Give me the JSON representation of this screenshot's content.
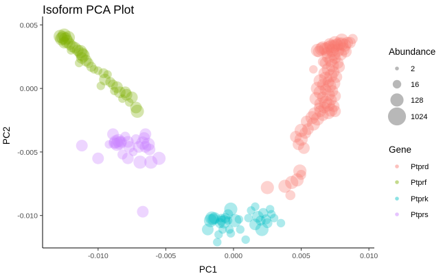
{
  "chart_data": {
    "type": "scatter",
    "title": "Isoform PCA Plot",
    "xlabel": "PC1",
    "ylabel": "PC2",
    "xlim": [
      -0.0141,
      0.0104
    ],
    "ylim": [
      -0.01255,
      0.00545
    ],
    "x_ticks": [
      -0.01,
      -0.005,
      0.0,
      0.005,
      0.01
    ],
    "x_tick_labels": [
      "-0.010",
      "-0.005",
      "0.000",
      "0.005",
      "0.010"
    ],
    "y_ticks": [
      -0.01,
      -0.005,
      0.0,
      0.005
    ],
    "y_tick_labels": [
      "-0.010",
      "-0.005",
      "0.000",
      "0.005"
    ],
    "grid": false,
    "legend_position": "right",
    "size_legend": {
      "title": "Abundance",
      "entries": [
        {
          "label": "2",
          "value": 2
        },
        {
          "label": "16",
          "value": 16
        },
        {
          "label": "128",
          "value": 128
        },
        {
          "label": "1024",
          "value": 1024
        }
      ]
    },
    "color_legend": {
      "title": "Gene",
      "entries": [
        {
          "label": "Ptprd",
          "color": "#F8766D"
        },
        {
          "label": "Ptprf",
          "color": "#7CAE00"
        },
        {
          "label": "Ptprk",
          "color": "#00BFC4"
        },
        {
          "label": "Ptprs",
          "color": "#C77CFF"
        }
      ]
    },
    "series": [
      {
        "name": "Ptprd",
        "color": "#F8766D",
        "points": [
          [
            0.0062,
            0.003,
            128
          ],
          [
            0.0065,
            0.0031,
            128
          ],
          [
            0.0068,
            0.0031,
            128
          ],
          [
            0.007,
            0.0032,
            128
          ],
          [
            0.0072,
            0.0033,
            128
          ],
          [
            0.0074,
            0.0033,
            128
          ],
          [
            0.0076,
            0.0034,
            128
          ],
          [
            0.0078,
            0.0035,
            128
          ],
          [
            0.008,
            0.0035,
            128
          ],
          [
            0.0082,
            0.0034,
            128
          ],
          [
            0.0084,
            0.0036,
            64
          ],
          [
            0.0086,
            0.0036,
            64
          ],
          [
            0.0088,
            0.0039,
            32
          ],
          [
            0.008,
            0.0038,
            128
          ],
          [
            0.0075,
            0.0036,
            128
          ],
          [
            0.0071,
            0.0035,
            64
          ],
          [
            0.0066,
            0.0032,
            128
          ],
          [
            0.0063,
            0.0029,
            64
          ],
          [
            0.0073,
            0.003,
            128
          ],
          [
            0.0077,
            0.003,
            128
          ],
          [
            0.0081,
            0.0031,
            128
          ],
          [
            0.0069,
            0.0028,
            64
          ],
          [
            0.0074,
            0.0027,
            128
          ],
          [
            0.0079,
            0.0027,
            128
          ],
          [
            0.0083,
            0.0029,
            64
          ],
          [
            0.007,
            0.0025,
            128
          ],
          [
            0.0075,
            0.0024,
            64
          ],
          [
            0.0072,
            0.0022,
            128
          ],
          [
            0.0077,
            0.002,
            64
          ],
          [
            0.0068,
            0.002,
            64
          ],
          [
            0.0073,
            0.0018,
            128
          ],
          [
            0.0078,
            0.0017,
            64
          ],
          [
            0.007,
            0.0015,
            128
          ],
          [
            0.0074,
            0.0013,
            64
          ],
          [
            0.0067,
            0.0012,
            64
          ],
          [
            0.0072,
            0.001,
            128
          ],
          [
            0.0076,
            0.0009,
            64
          ],
          [
            0.0068,
            0.0008,
            128
          ],
          [
            0.0064,
            0.0006,
            128
          ],
          [
            0.007,
            0.0005,
            64
          ],
          [
            0.0074,
            0.0004,
            128
          ],
          [
            0.0066,
            0.0003,
            64
          ],
          [
            0.0071,
            0.0002,
            128
          ],
          [
            0.0062,
            0.0,
            128
          ],
          [
            0.0068,
            -0.0001,
            64
          ],
          [
            0.0073,
            -0.0002,
            64
          ],
          [
            0.0064,
            -0.0003,
            128
          ],
          [
            0.007,
            -0.0005,
            128
          ],
          [
            0.0075,
            -0.0006,
            64
          ],
          [
            0.0066,
            -0.0007,
            64
          ],
          [
            0.0061,
            -0.0008,
            128
          ],
          [
            0.0072,
            -0.0009,
            64
          ],
          [
            0.0068,
            -0.0011,
            128
          ],
          [
            0.0064,
            -0.0012,
            64
          ],
          [
            0.007,
            -0.0013,
            128
          ],
          [
            0.0074,
            -0.0014,
            64
          ],
          [
            0.0067,
            -0.0015,
            64
          ],
          [
            0.0072,
            -0.0017,
            128
          ],
          [
            0.0064,
            -0.0018,
            64
          ],
          [
            0.007,
            -0.0019,
            128
          ],
          [
            0.0075,
            -0.0018,
            64
          ],
          [
            0.006,
            -0.002,
            128
          ],
          [
            0.0066,
            -0.0021,
            64
          ],
          [
            0.0058,
            -0.0023,
            128
          ],
          [
            0.0062,
            -0.0024,
            128
          ],
          [
            0.0054,
            -0.0026,
            64
          ],
          [
            0.0059,
            -0.0028,
            128
          ],
          [
            0.0055,
            -0.0032,
            64
          ],
          [
            0.005,
            -0.0033,
            128
          ],
          [
            0.0053,
            -0.0035,
            64
          ],
          [
            0.0046,
            -0.0038,
            64
          ],
          [
            0.005,
            -0.004,
            128
          ],
          [
            0.0048,
            -0.0044,
            64
          ],
          [
            0.0052,
            -0.0047,
            64
          ],
          [
            0.0049,
            -0.0065,
            128
          ],
          [
            0.005,
            -0.0068,
            32
          ],
          [
            0.0047,
            -0.0072,
            128
          ],
          [
            0.0043,
            -0.0074,
            128
          ],
          [
            0.0038,
            -0.0077,
            128
          ],
          [
            0.0025,
            -0.0078,
            128
          ],
          [
            0.0042,
            -0.0084,
            32
          ],
          [
            0.0066,
            0.0021,
            32
          ],
          [
            0.0059,
            0.0015,
            16
          ],
          [
            0.0063,
            -0.0015,
            32
          ]
        ]
      },
      {
        "name": "Ptprf",
        "color": "#7CAE00",
        "points": [
          [
            -0.0128,
            0.0041,
            128
          ],
          [
            -0.0126,
            0.004,
            128
          ],
          [
            -0.0124,
            0.0039,
            128
          ],
          [
            -0.0125,
            0.0042,
            128
          ],
          [
            -0.0127,
            0.0039,
            128
          ],
          [
            -0.0122,
            0.004,
            128
          ],
          [
            -0.0123,
            0.0037,
            128
          ],
          [
            -0.0125,
            0.0036,
            64
          ],
          [
            -0.0121,
            0.0035,
            64
          ],
          [
            -0.0119,
            0.0033,
            64
          ],
          [
            -0.0117,
            0.0032,
            64
          ],
          [
            -0.0115,
            0.003,
            64
          ],
          [
            -0.0113,
            0.0029,
            128
          ],
          [
            -0.0112,
            0.0027,
            128
          ],
          [
            -0.0111,
            0.0026,
            128
          ],
          [
            -0.0112,
            0.0024,
            64
          ],
          [
            -0.0109,
            0.0022,
            64
          ],
          [
            -0.0107,
            0.002,
            32
          ],
          [
            -0.0105,
            0.0017,
            32
          ],
          [
            -0.0103,
            0.0015,
            16
          ],
          [
            -0.01,
            0.0014,
            16
          ],
          [
            -0.0096,
            0.0012,
            32
          ],
          [
            -0.0095,
            0.0007,
            64
          ],
          [
            -0.0091,
            0.0005,
            32
          ],
          [
            -0.0089,
            0.0003,
            32
          ],
          [
            -0.0086,
            0.0001,
            64
          ],
          [
            -0.0084,
            -0.0003,
            64
          ],
          [
            -0.008,
            -0.0003,
            64
          ],
          [
            -0.0079,
            -0.0005,
            64
          ],
          [
            -0.0075,
            -0.0007,
            64
          ],
          [
            -0.0072,
            -0.0015,
            64
          ],
          [
            -0.0071,
            -0.0018,
            128
          ],
          [
            -0.0093,
            0.0011,
            16
          ],
          [
            -0.0088,
            -0.0002,
            16
          ],
          [
            -0.0082,
            -0.0008,
            16
          ],
          [
            -0.0077,
            -0.0011,
            16
          ],
          [
            -0.012,
            0.003,
            16
          ],
          [
            -0.0114,
            0.002,
            16
          ],
          [
            -0.0098,
            0.0002,
            16
          ]
        ]
      },
      {
        "name": "Ptprk",
        "color": "#00BFC4",
        "points": [
          [
            -0.0017,
            -0.0104,
            128
          ],
          [
            -0.0016,
            -0.0102,
            128
          ],
          [
            -0.0015,
            -0.0103,
            64
          ],
          [
            -0.0014,
            -0.0102,
            64
          ],
          [
            -0.001,
            -0.0106,
            32
          ],
          [
            -0.0009,
            -0.0104,
            32
          ],
          [
            -0.0007,
            -0.0105,
            128
          ],
          [
            -0.0006,
            -0.0102,
            32
          ],
          [
            -0.0004,
            -0.0104,
            16
          ],
          [
            -0.0003,
            -0.0111,
            16
          ],
          [
            -0.0004,
            -0.0099,
            32
          ],
          [
            -0.0009,
            -0.0102,
            16
          ],
          [
            0.0001,
            -0.0104,
            128
          ],
          [
            -0.0002,
            -0.0095,
            128
          ],
          [
            -0.0019,
            -0.0111,
            64
          ],
          [
            -0.0011,
            -0.0115,
            16
          ],
          [
            -0.0008,
            -0.0111,
            16
          ],
          [
            0.0005,
            -0.0111,
            16
          ],
          [
            0.0004,
            -0.0103,
            16
          ],
          [
            -0.0002,
            -0.0114,
            16
          ],
          [
            0.0016,
            -0.0107,
            64
          ],
          [
            0.0018,
            -0.0101,
            64
          ],
          [
            0.002,
            -0.0104,
            32
          ],
          [
            0.0022,
            -0.0098,
            32
          ],
          [
            0.0024,
            -0.0103,
            32
          ],
          [
            0.0025,
            -0.0106,
            32
          ],
          [
            0.0027,
            -0.0095,
            16
          ],
          [
            0.0028,
            -0.0099,
            16
          ],
          [
            0.003,
            -0.0102,
            16
          ],
          [
            0.0035,
            -0.0106,
            16
          ],
          [
            0.0021,
            -0.0111,
            128
          ],
          [
            0.0016,
            -0.0093,
            16
          ],
          [
            0.0013,
            -0.0096,
            16
          ],
          [
            0.0011,
            -0.0102,
            16
          ],
          [
            0.0009,
            -0.0119,
            16
          ],
          [
            -0.0012,
            -0.0121,
            16
          ]
        ]
      },
      {
        "name": "Ptprs",
        "color": "#C77CFF",
        "points": [
          [
            -0.0087,
            -0.0042,
            128
          ],
          [
            -0.0086,
            -0.0044,
            128
          ],
          [
            -0.0085,
            -0.0041,
            128
          ],
          [
            -0.0084,
            -0.0043,
            128
          ],
          [
            -0.0088,
            -0.0043,
            64
          ],
          [
            -0.0083,
            -0.0042,
            64
          ],
          [
            -0.0089,
            -0.0036,
            64
          ],
          [
            -0.008,
            -0.0038,
            32
          ],
          [
            -0.0078,
            -0.0042,
            64
          ],
          [
            -0.0077,
            -0.0046,
            64
          ],
          [
            -0.0072,
            -0.004,
            32
          ],
          [
            -0.007,
            -0.0046,
            64
          ],
          [
            -0.0067,
            -0.0043,
            128
          ],
          [
            -0.0066,
            -0.0039,
            64
          ],
          [
            -0.0063,
            -0.0044,
            128
          ],
          [
            -0.0065,
            -0.0046,
            64
          ],
          [
            -0.0062,
            -0.0048,
            64
          ],
          [
            -0.0061,
            -0.0058,
            128
          ],
          [
            -0.0055,
            -0.0055,
            128
          ],
          [
            -0.0069,
            -0.0058,
            128
          ],
          [
            -0.0078,
            -0.0055,
            64
          ],
          [
            -0.0082,
            -0.0052,
            32
          ],
          [
            -0.0092,
            -0.0044,
            16
          ],
          [
            -0.0112,
            -0.0045,
            64
          ],
          [
            -0.01,
            -0.0055,
            64
          ],
          [
            -0.0065,
            -0.0036,
            64
          ],
          [
            -0.0067,
            -0.0097,
            64
          ],
          [
            -0.0074,
            -0.005,
            16
          ]
        ]
      }
    ]
  }
}
